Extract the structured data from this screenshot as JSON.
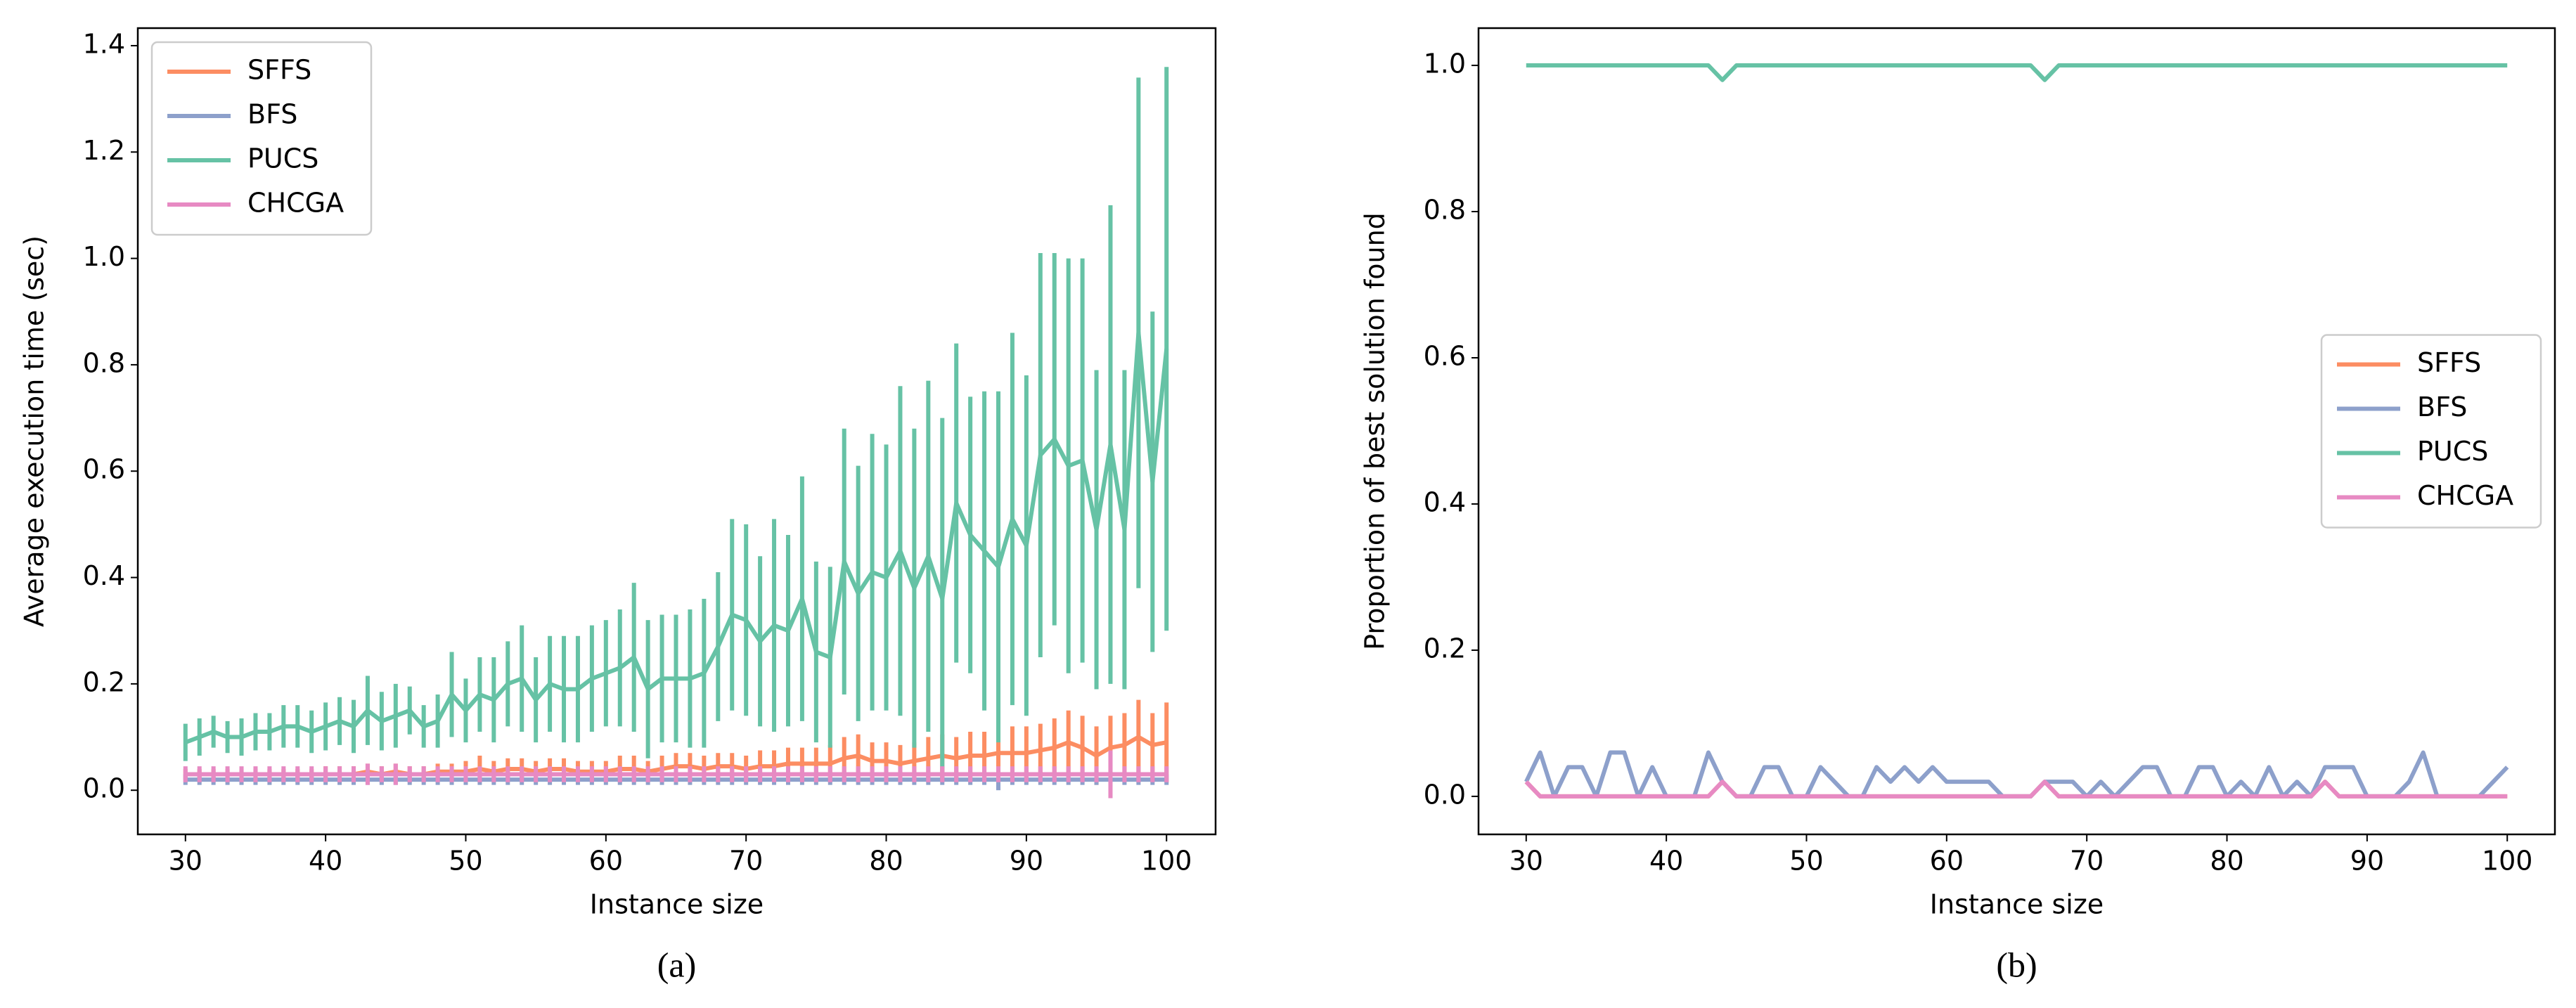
{
  "chart_data": [
    {
      "type": "line",
      "caption": "(a)",
      "xlabel": "Instance size",
      "ylabel": "Average execution time (sec)",
      "legend": "upper left",
      "xlim": [
        26.6,
        103.5
      ],
      "ylim": [
        -0.083,
        1.433
      ],
      "xticks": [
        30,
        40,
        50,
        60,
        70,
        80,
        90,
        100
      ],
      "yticks": [
        {
          "value": 0,
          "label": "0.0"
        },
        0.2,
        0.4,
        0.6,
        0.8,
        {
          "value": 1,
          "label": "1.0"
        },
        1.2,
        1.4
      ],
      "x": [
        30,
        31,
        32,
        33,
        34,
        35,
        36,
        37,
        38,
        39,
        40,
        41,
        42,
        43,
        44,
        45,
        46,
        47,
        48,
        49,
        50,
        51,
        52,
        53,
        54,
        55,
        56,
        57,
        58,
        59,
        60,
        61,
        62,
        63,
        64,
        65,
        66,
        67,
        68,
        69,
        70,
        71,
        72,
        73,
        74,
        75,
        76,
        77,
        78,
        79,
        80,
        81,
        82,
        83,
        84,
        85,
        86,
        87,
        88,
        89,
        90,
        91,
        92,
        93,
        94,
        95,
        96,
        97,
        98,
        99,
        100
      ],
      "series": [
        {
          "name": "SFFS",
          "color": "#fc8d62",
          "values": [
            0.03,
            0.03,
            0.03,
            0.03,
            0.03,
            0.03,
            0.03,
            0.03,
            0.03,
            0.03,
            0.03,
            0.03,
            0.03,
            0.035,
            0.03,
            0.035,
            0.03,
            0.03,
            0.035,
            0.035,
            0.035,
            0.04,
            0.035,
            0.04,
            0.04,
            0.035,
            0.04,
            0.04,
            0.035,
            0.035,
            0.035,
            0.04,
            0.04,
            0.035,
            0.04,
            0.045,
            0.045,
            0.04,
            0.045,
            0.045,
            0.04,
            0.045,
            0.045,
            0.05,
            0.05,
            0.05,
            0.05,
            0.06,
            0.065,
            0.055,
            0.055,
            0.05,
            0.055,
            0.06,
            0.065,
            0.06,
            0.065,
            0.065,
            0.07,
            0.07,
            0.07,
            0.075,
            0.08,
            0.09,
            0.08,
            0.065,
            0.08,
            0.085,
            0.1,
            0.085,
            0.09
          ],
          "errors": [
            0.01,
            0.01,
            0.01,
            0.01,
            0.01,
            0.01,
            0.01,
            0.01,
            0.01,
            0.01,
            0.015,
            0.015,
            0.015,
            0.015,
            0.015,
            0.015,
            0.015,
            0.015,
            0.015,
            0.015,
            0.02,
            0.025,
            0.02,
            0.02,
            0.02,
            0.02,
            0.02,
            0.02,
            0.02,
            0.02,
            0.02,
            0.025,
            0.025,
            0.02,
            0.025,
            0.025,
            0.025,
            0.025,
            0.025,
            0.025,
            0.025,
            0.03,
            0.03,
            0.03,
            0.03,
            0.03,
            0.035,
            0.04,
            0.04,
            0.035,
            0.035,
            0.035,
            0.035,
            0.04,
            0.04,
            0.04,
            0.045,
            0.045,
            0.05,
            0.05,
            0.05,
            0.05,
            0.055,
            0.06,
            0.06,
            0.055,
            0.06,
            0.06,
            0.07,
            0.06,
            0.075
          ]
        },
        {
          "name": "BFS",
          "color": "#8da0cb",
          "values": [
            0.02,
            0.02,
            0.02,
            0.02,
            0.02,
            0.02,
            0.02,
            0.02,
            0.02,
            0.02,
            0.02,
            0.02,
            0.02,
            0.02,
            0.02,
            0.02,
            0.02,
            0.02,
            0.02,
            0.02,
            0.02,
            0.02,
            0.02,
            0.02,
            0.02,
            0.02,
            0.02,
            0.02,
            0.02,
            0.02,
            0.02,
            0.02,
            0.02,
            0.02,
            0.02,
            0.02,
            0.02,
            0.02,
            0.02,
            0.02,
            0.02,
            0.02,
            0.02,
            0.02,
            0.02,
            0.02,
            0.02,
            0.02,
            0.02,
            0.02,
            0.02,
            0.02,
            0.02,
            0.02,
            0.02,
            0.02,
            0.02,
            0.02,
            0.02,
            0.02,
            0.02,
            0.02,
            0.02,
            0.02,
            0.02,
            0.02,
            0.02,
            0.02,
            0.02,
            0.02,
            0.02
          ],
          "errors": [
            0.01,
            0.01,
            0.01,
            0.01,
            0.01,
            0.01,
            0.01,
            0.01,
            0.01,
            0.01,
            0.01,
            0.01,
            0.01,
            0.01,
            0.01,
            0.01,
            0.01,
            0.01,
            0.01,
            0.01,
            0.01,
            0.01,
            0.01,
            0.01,
            0.01,
            0.01,
            0.01,
            0.01,
            0.01,
            0.01,
            0.01,
            0.01,
            0.01,
            0.01,
            0.01,
            0.01,
            0.01,
            0.01,
            0.01,
            0.01,
            0.01,
            0.01,
            0.01,
            0.01,
            0.01,
            0.01,
            0.01,
            0.01,
            0.01,
            0.01,
            0.01,
            0.01,
            0.01,
            0.01,
            0.01,
            0.01,
            0.01,
            0.01,
            0.02,
            0.01,
            0.01,
            0.01,
            0.01,
            0.01,
            0.01,
            0.01,
            0.015,
            0.01,
            0.01,
            0.01,
            0.01
          ]
        },
        {
          "name": "PUCS",
          "color": "#66c2a5",
          "values": [
            0.09,
            0.1,
            0.11,
            0.1,
            0.1,
            0.11,
            0.11,
            0.12,
            0.12,
            0.11,
            0.12,
            0.13,
            0.12,
            0.15,
            0.13,
            0.14,
            0.15,
            0.12,
            0.13,
            0.18,
            0.15,
            0.18,
            0.17,
            0.2,
            0.21,
            0.17,
            0.2,
            0.19,
            0.19,
            0.21,
            0.22,
            0.23,
            0.25,
            0.19,
            0.21,
            0.21,
            0.21,
            0.22,
            0.27,
            0.33,
            0.32,
            0.28,
            0.31,
            0.3,
            0.36,
            0.26,
            0.25,
            0.43,
            0.37,
            0.41,
            0.4,
            0.45,
            0.38,
            0.44,
            0.36,
            0.54,
            0.48,
            0.45,
            0.42,
            0.51,
            0.46,
            0.63,
            0.66,
            0.61,
            0.62,
            0.49,
            0.65,
            0.49,
            0.86,
            0.58,
            0.83
          ],
          "errors": [
            0.035,
            0.035,
            0.03,
            0.03,
            0.035,
            0.035,
            0.035,
            0.04,
            0.04,
            0.04,
            0.045,
            0.045,
            0.05,
            0.065,
            0.055,
            0.06,
            0.045,
            0.04,
            0.05,
            0.08,
            0.06,
            0.07,
            0.08,
            0.08,
            0.1,
            0.08,
            0.09,
            0.1,
            0.1,
            0.1,
            0.1,
            0.11,
            0.14,
            0.13,
            0.12,
            0.12,
            0.13,
            0.14,
            0.14,
            0.18,
            0.18,
            0.16,
            0.2,
            0.18,
            0.23,
            0.17,
            0.17,
            0.25,
            0.24,
            0.26,
            0.25,
            0.31,
            0.3,
            0.33,
            0.34,
            0.3,
            0.26,
            0.3,
            0.33,
            0.35,
            0.32,
            0.38,
            0.35,
            0.39,
            0.38,
            0.3,
            0.45,
            0.3,
            0.48,
            0.32,
            0.53
          ]
        },
        {
          "name": "CHCGA",
          "color": "#e78ac3",
          "values": [
            0.03,
            0.03,
            0.03,
            0.03,
            0.03,
            0.03,
            0.03,
            0.03,
            0.03,
            0.03,
            0.03,
            0.03,
            0.03,
            0.03,
            0.03,
            0.03,
            0.03,
            0.03,
            0.03,
            0.03,
            0.03,
            0.03,
            0.03,
            0.03,
            0.03,
            0.03,
            0.03,
            0.03,
            0.03,
            0.03,
            0.03,
            0.03,
            0.03,
            0.03,
            0.03,
            0.03,
            0.03,
            0.03,
            0.03,
            0.03,
            0.03,
            0.03,
            0.03,
            0.03,
            0.03,
            0.03,
            0.03,
            0.03,
            0.03,
            0.03,
            0.03,
            0.03,
            0.03,
            0.03,
            0.03,
            0.03,
            0.03,
            0.03,
            0.03,
            0.03,
            0.03,
            0.03,
            0.03,
            0.03,
            0.03,
            0.03,
            0.03,
            0.03,
            0.03,
            0.03,
            0.03
          ],
          "errors": [
            0.015,
            0.015,
            0.015,
            0.015,
            0.015,
            0.015,
            0.015,
            0.015,
            0.015,
            0.015,
            0.015,
            0.015,
            0.015,
            0.02,
            0.015,
            0.02,
            0.015,
            0.015,
            0.015,
            0.015,
            0.015,
            0.015,
            0.015,
            0.015,
            0.015,
            0.015,
            0.015,
            0.015,
            0.015,
            0.015,
            0.015,
            0.015,
            0.015,
            0.015,
            0.015,
            0.015,
            0.015,
            0.015,
            0.015,
            0.015,
            0.015,
            0.015,
            0.015,
            0.015,
            0.015,
            0.015,
            0.015,
            0.015,
            0.015,
            0.015,
            0.015,
            0.015,
            0.015,
            0.015,
            0.015,
            0.015,
            0.015,
            0.015,
            0.015,
            0.015,
            0.015,
            0.015,
            0.015,
            0.015,
            0.015,
            0.015,
            0.045,
            0.015,
            0.015,
            0.015,
            0.015
          ]
        }
      ]
    },
    {
      "type": "line",
      "caption": "(b)",
      "xlabel": "Instance size",
      "ylabel": "Proportion of best solution found",
      "legend": "center right",
      "xlim": [
        26.6,
        103.4
      ],
      "ylim": [
        -0.052,
        1.051
      ],
      "xticks": [
        30,
        40,
        50,
        60,
        70,
        80,
        90,
        100
      ],
      "yticks": [
        {
          "value": 0,
          "label": "0.0"
        },
        0.2,
        0.4,
        0.6,
        0.8,
        {
          "value": 1,
          "label": "1.0"
        }
      ],
      "x": [
        30,
        31,
        32,
        33,
        34,
        35,
        36,
        37,
        38,
        39,
        40,
        41,
        42,
        43,
        44,
        45,
        46,
        47,
        48,
        49,
        50,
        51,
        52,
        53,
        54,
        55,
        56,
        57,
        58,
        59,
        60,
        61,
        62,
        63,
        64,
        65,
        66,
        67,
        68,
        69,
        70,
        71,
        72,
        73,
        74,
        75,
        76,
        77,
        78,
        79,
        80,
        81,
        82,
        83,
        84,
        85,
        86,
        87,
        88,
        89,
        90,
        91,
        92,
        93,
        94,
        95,
        96,
        97,
        98,
        99,
        100
      ],
      "series": [
        {
          "name": "SFFS",
          "color": "#fc8d62",
          "values": [
            0.02,
            0,
            0,
            0,
            0,
            0,
            0,
            0,
            0,
            0,
            0,
            0,
            0,
            0,
            0.02,
            0,
            0,
            0,
            0,
            0,
            0,
            0,
            0,
            0,
            0,
            0,
            0,
            0,
            0,
            0,
            0,
            0,
            0,
            0,
            0,
            0,
            0,
            0.02,
            0,
            0,
            0,
            0,
            0,
            0,
            0,
            0,
            0,
            0,
            0,
            0,
            0,
            0,
            0,
            0,
            0,
            0,
            0,
            0.02,
            0,
            0,
            0,
            0,
            0,
            0,
            0,
            0,
            0,
            0,
            0,
            0,
            0
          ]
        },
        {
          "name": "BFS",
          "color": "#8da0cb",
          "values": [
            0.02,
            0.06,
            0,
            0.04,
            0.04,
            0,
            0.06,
            0.06,
            0,
            0.04,
            0,
            0,
            0,
            0.06,
            0.02,
            0,
            0,
            0.04,
            0.04,
            0,
            0,
            0.04,
            0.02,
            0,
            0,
            0.04,
            0.02,
            0.04,
            0.02,
            0.04,
            0.02,
            0.02,
            0.02,
            0.02,
            0,
            0,
            0,
            0.02,
            0.02,
            0.02,
            0,
            0.02,
            0,
            0.02,
            0.04,
            0.04,
            0,
            0,
            0.04,
            0.04,
            0,
            0.02,
            0,
            0.04,
            0,
            0.02,
            0,
            0.04,
            0.04,
            0.04,
            0,
            0,
            0,
            0.02,
            0.06,
            0,
            0,
            0,
            0,
            0.02,
            0.04
          ]
        },
        {
          "name": "PUCS",
          "color": "#66c2a5",
          "values": [
            1,
            1,
            1,
            1,
            1,
            1,
            1,
            1,
            1,
            1,
            1,
            1,
            1,
            1,
            0.98,
            1,
            1,
            1,
            1,
            1,
            1,
            1,
            1,
            1,
            1,
            1,
            1,
            1,
            1,
            1,
            1,
            1,
            1,
            1,
            1,
            1,
            1,
            0.98,
            1,
            1,
            1,
            1,
            1,
            1,
            1,
            1,
            1,
            1,
            1,
            1,
            1,
            1,
            1,
            1,
            1,
            1,
            1,
            1,
            1,
            1,
            1,
            1,
            1,
            1,
            1,
            1,
            1,
            1,
            1,
            1,
            1
          ]
        },
        {
          "name": "CHCGA",
          "color": "#e78ac3",
          "values": [
            0.02,
            0,
            0,
            0,
            0,
            0,
            0,
            0,
            0,
            0,
            0,
            0,
            0,
            0,
            0.02,
            0,
            0,
            0,
            0,
            0,
            0,
            0,
            0,
            0,
            0,
            0,
            0,
            0,
            0,
            0,
            0,
            0,
            0,
            0,
            0,
            0,
            0,
            0.02,
            0,
            0,
            0,
            0,
            0,
            0,
            0,
            0,
            0,
            0,
            0,
            0,
            0,
            0,
            0,
            0,
            0,
            0,
            0,
            0.02,
            0,
            0,
            0,
            0,
            0,
            0,
            0,
            0,
            0,
            0,
            0,
            0,
            0
          ]
        }
      ]
    }
  ]
}
